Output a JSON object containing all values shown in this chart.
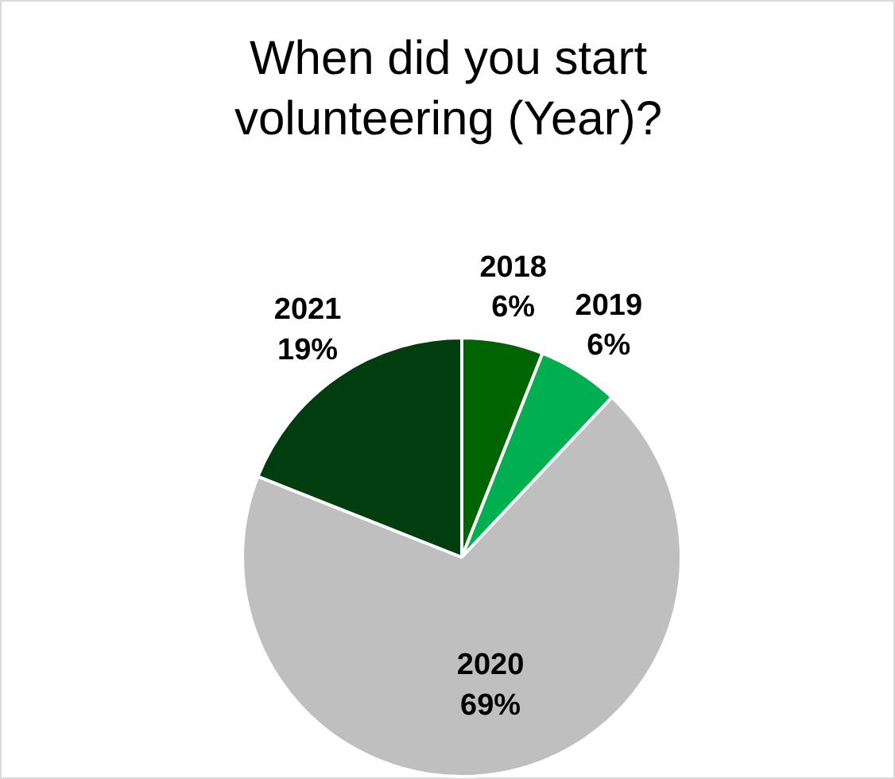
{
  "chart_data": {
    "type": "pie",
    "title": "When did you start volunteering (Year)?",
    "categories": [
      "2018",
      "2019",
      "2020",
      "2021"
    ],
    "values": [
      6,
      6,
      69,
      19
    ],
    "colors": [
      "#006400",
      "#00b050",
      "#bfbfbf",
      "#003d0f"
    ],
    "value_labels": [
      "6%",
      "6%",
      "69%",
      "19%"
    ]
  }
}
